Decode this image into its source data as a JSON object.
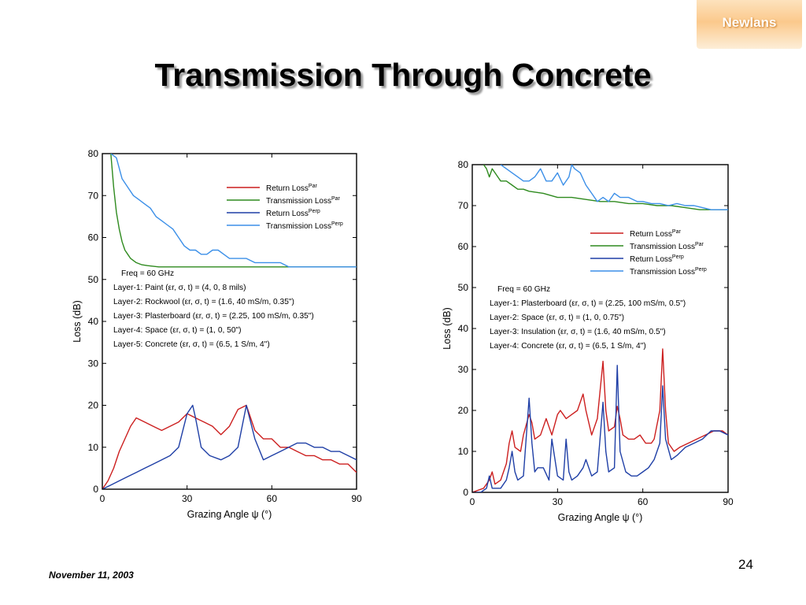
{
  "logo": {
    "text": "Newlans"
  },
  "title": "Transmission Through Concrete",
  "footer": {
    "date": "November 11, 2003",
    "page": "24"
  },
  "colors": {
    "return_par": "#cc1f1f",
    "transmission_par": "#2e8a1e",
    "return_perp": "#1f3fa6",
    "transmission_perp": "#3b8fe8"
  },
  "chart_data": [
    {
      "type": "line",
      "xlabel": "Grazing Angle ψ (°)",
      "ylabel": "Loss (dB)",
      "xlim": [
        0,
        90
      ],
      "ylim": [
        0,
        80
      ],
      "xticks": [
        0,
        30,
        60,
        90
      ],
      "yticks": [
        0,
        10,
        20,
        30,
        40,
        50,
        60,
        70,
        80
      ],
      "grid": false,
      "legend": "top-right",
      "legend_entries": [
        {
          "base": "Return Loss",
          "sup": "Par"
        },
        {
          "base": "Transmission Loss",
          "sup": "Par"
        },
        {
          "base": "Return Loss",
          "sup": "Perp"
        },
        {
          "base": "Transmission Loss",
          "sup": "Perp"
        }
      ],
      "annotation": [
        "Freq = 60 GHz",
        "Layer-1: Paint (εr, σ, t) = (4, 0, 8 mils)",
        "Layer-2: Rockwool (εr, σ, t) = (1.6, 40 mS/m, 0.35\")",
        "Layer-3: Plasterboard (εr, σ, t) = (2.25, 100 mS/m, 0.35\")",
        "Layer-4: Space (εr, σ, t) = (1, 0, 50\")",
        "Layer-5: Concrete (εr, σ, t) = (6.5, 1 S/m, 4\")"
      ],
      "series": [
        {
          "name": "Return Loss Par",
          "color": "#cc1f1f",
          "x": [
            0,
            2,
            4,
            6,
            8,
            10,
            12,
            15,
            18,
            21,
            24,
            27,
            30,
            33,
            36,
            39,
            42,
            45,
            48,
            51,
            54,
            57,
            60,
            63,
            66,
            69,
            72,
            75,
            78,
            81,
            84,
            87,
            90
          ],
          "y": [
            0,
            2,
            5,
            9,
            12,
            15,
            17,
            16,
            15,
            14,
            15,
            16,
            18,
            17,
            16,
            15,
            13,
            15,
            19,
            20,
            14,
            12,
            12,
            10,
            10,
            9,
            8,
            8,
            7,
            7,
            6,
            6,
            4
          ]
        },
        {
          "name": "Transmission Loss Par",
          "color": "#2e8a1e",
          "x": [
            3,
            4,
            5,
            6,
            7,
            8,
            9,
            10,
            12,
            14,
            16,
            20,
            25,
            30,
            40,
            50,
            60,
            70,
            80,
            90
          ],
          "y": [
            80,
            72,
            66,
            62,
            59,
            57,
            56,
            55,
            54,
            53.5,
            53.3,
            53,
            53,
            53,
            53,
            53,
            53,
            53,
            53,
            53
          ]
        },
        {
          "name": "Return Loss Perp",
          "color": "#1f3fa6",
          "x": [
            0,
            3,
            6,
            9,
            12,
            15,
            18,
            21,
            24,
            27,
            30,
            32,
            33,
            35,
            38,
            42,
            45,
            48,
            51,
            54,
            57,
            60,
            63,
            66,
            69,
            72,
            75,
            78,
            81,
            84,
            87,
            90
          ],
          "y": [
            0,
            1,
            2,
            3,
            4,
            5,
            6,
            7,
            8,
            10,
            18,
            20,
            17,
            10,
            8,
            7,
            8,
            10,
            20,
            12,
            7,
            8,
            9,
            10,
            11,
            11,
            10,
            10,
            9,
            9,
            8,
            7
          ]
        },
        {
          "name": "Transmission Loss Perp",
          "color": "#3b8fe8",
          "x": [
            3,
            5,
            7,
            9,
            11,
            13,
            15,
            17,
            19,
            21,
            23,
            25,
            27,
            29,
            31,
            33,
            35,
            37,
            39,
            41,
            43,
            45,
            47,
            49,
            51,
            54,
            57,
            60,
            63,
            66,
            69,
            72,
            75,
            78,
            81,
            84,
            87,
            90
          ],
          "y": [
            80,
            79,
            74,
            72,
            70,
            69,
            68,
            67,
            65,
            64,
            63,
            62,
            60,
            58,
            57,
            57,
            56,
            56,
            57,
            57,
            56,
            55,
            55,
            55,
            55,
            54,
            54,
            54,
            54,
            53,
            53,
            53,
            53,
            53,
            53,
            53,
            53,
            53
          ]
        }
      ]
    },
    {
      "type": "line",
      "xlabel": "Grazing Angle ψ (°)",
      "ylabel": "Loss (dB)",
      "xlim": [
        0,
        90
      ],
      "ylim": [
        0,
        80
      ],
      "xticks": [
        0,
        30,
        60,
        90
      ],
      "yticks": [
        0,
        10,
        20,
        30,
        40,
        50,
        60,
        70,
        80
      ],
      "grid": false,
      "legend": "right",
      "legend_entries": [
        {
          "base": "Return Loss",
          "sup": "Par"
        },
        {
          "base": "Transmission Loss",
          "sup": "Par"
        },
        {
          "base": "Return Loss",
          "sup": "Perp"
        },
        {
          "base": "Transmission Loss",
          "sup": "Perp"
        }
      ],
      "annotation": [
        "Freq = 60 GHz",
        "Layer-1: Plasterboard (εr, σ, t) = (2.25, 100 mS/m, 0.5\")",
        "Layer-2: Space (εr, σ, t) = (1, 0, 0.75\")",
        "Layer-3: Insulation (εr, σ, t) = (1.6, 40 mS/m, 0.5\")",
        "Layer-4: Concrete (εr, σ, t) = (6.5, 1 S/m, 4\")"
      ],
      "series": [
        {
          "name": "Return Loss Par",
          "color": "#cc1f1f",
          "x": [
            0,
            4,
            6,
            7,
            8,
            10,
            12,
            13,
            14,
            15,
            17,
            18,
            20,
            21,
            22,
            24,
            26,
            27,
            28,
            30,
            31,
            32,
            33,
            35,
            37,
            38,
            39,
            40,
            42,
            44,
            46,
            47,
            48,
            50,
            51,
            52,
            53,
            55,
            57,
            59,
            61,
            63,
            64,
            66,
            67,
            68,
            69,
            71,
            73,
            76,
            79,
            82,
            85,
            88,
            90
          ],
          "y": [
            0,
            1,
            3,
            5,
            2,
            3,
            7,
            12,
            15,
            11,
            10,
            14,
            19,
            17,
            13,
            14,
            18,
            16,
            14,
            19,
            20,
            19,
            18,
            19,
            20,
            22,
            24,
            20,
            14,
            18,
            32,
            20,
            15,
            16,
            21,
            18,
            14,
            13,
            13,
            14,
            12,
            12,
            13,
            20,
            35,
            20,
            12,
            10,
            11,
            12,
            13,
            14,
            15,
            15,
            14
          ]
        },
        {
          "name": "Transmission Loss Par",
          "color": "#2e8a1e",
          "x": [
            4,
            5,
            6,
            7,
            8,
            9,
            10,
            12,
            14,
            16,
            18,
            20,
            25,
            30,
            35,
            40,
            45,
            50,
            55,
            60,
            65,
            70,
            75,
            80,
            85,
            90
          ],
          "y": [
            80,
            79,
            77,
            79,
            78,
            77,
            76,
            76,
            75,
            74,
            74,
            73.5,
            73,
            72,
            72,
            71.5,
            71,
            71,
            70.5,
            70.5,
            70,
            70,
            69.5,
            69,
            69,
            69
          ]
        },
        {
          "name": "Return Loss Perp",
          "color": "#1f3fa6",
          "x": [
            0,
            3,
            5,
            6,
            7,
            8,
            10,
            12,
            13,
            14,
            15,
            16,
            18,
            20,
            21,
            22,
            23,
            25,
            27,
            28,
            30,
            32,
            33,
            34,
            35,
            37,
            39,
            40,
            42,
            44,
            46,
            47,
            48,
            50,
            51,
            52,
            54,
            56,
            58,
            60,
            62,
            64,
            66,
            67,
            68,
            70,
            72,
            75,
            78,
            81,
            84,
            87,
            90
          ],
          "y": [
            0,
            0,
            1,
            4,
            1,
            1,
            1,
            3,
            6,
            10,
            5,
            3,
            4,
            23,
            12,
            5,
            6,
            6,
            3,
            13,
            4,
            3,
            13,
            5,
            3,
            4,
            6,
            8,
            4,
            5,
            22,
            10,
            5,
            6,
            31,
            10,
            5,
            4,
            4,
            5,
            6,
            8,
            12,
            26,
            13,
            8,
            9,
            11,
            12,
            13,
            15,
            15,
            14
          ]
        },
        {
          "name": "Transmission Loss Perp",
          "color": "#3b8fe8",
          "x": [
            10,
            12,
            14,
            16,
            18,
            20,
            22,
            24,
            26,
            28,
            30,
            32,
            34,
            35,
            36,
            38,
            40,
            42,
            44,
            46,
            48,
            50,
            52,
            55,
            58,
            60,
            63,
            66,
            69,
            72,
            75,
            78,
            81,
            84,
            87,
            90
          ],
          "y": [
            80,
            79,
            78,
            77,
            76,
            76,
            77,
            79,
            76,
            76,
            78,
            75,
            77,
            80,
            79,
            78,
            75,
            73,
            71,
            72,
            71,
            73,
            72,
            72,
            71,
            71,
            70.5,
            70.5,
            70,
            70.5,
            70,
            70,
            69.5,
            69,
            69,
            69
          ]
        }
      ]
    }
  ]
}
